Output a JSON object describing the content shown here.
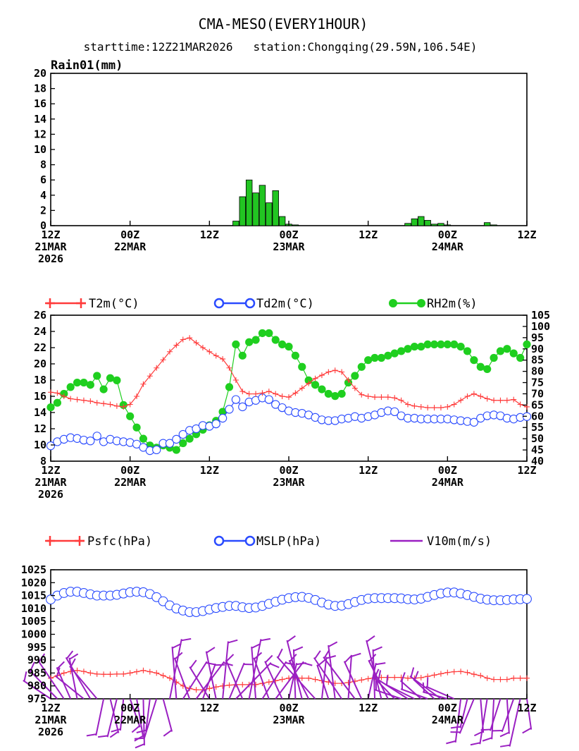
{
  "title": "CMA-MESO(EVERY1HOUR)",
  "subtitle": "starttime:12Z21MAR2026   station:Chongqing(29.59N,106.54E)",
  "colors": {
    "temp": "#ff3b3b",
    "dew": "#2a4bff",
    "rh": "#1fcf1f",
    "bar": "#22c522",
    "wind": "#9a1fc2"
  },
  "x_ticks": [
    {
      "top": "12Z",
      "mid": "21MAR",
      "bot": "2026"
    },
    {
      "top": "00Z",
      "mid": "22MAR",
      "bot": ""
    },
    {
      "top": "12Z",
      "mid": "",
      "bot": ""
    },
    {
      "top": "00Z",
      "mid": "23MAR",
      "bot": ""
    },
    {
      "top": "12Z",
      "mid": "",
      "bot": ""
    },
    {
      "top": "00Z",
      "mid": "24MAR",
      "bot": ""
    },
    {
      "top": "12Z",
      "mid": "",
      "bot": ""
    }
  ],
  "chart_data": [
    {
      "type": "bar",
      "ylabel": "Rain01(mm)",
      "ylim": [
        0,
        20
      ],
      "yticks": [
        "0",
        "2",
        "4",
        "6",
        "8",
        "10",
        "12",
        "14",
        "16",
        "18",
        "20"
      ],
      "xlim_hours": [
        0,
        72
      ],
      "x_hours": [
        28,
        29,
        30,
        31,
        32,
        33,
        34,
        35,
        36,
        37,
        54,
        55,
        56,
        57,
        58,
        59,
        60,
        66,
        67
      ],
      "values": [
        0.6,
        3.8,
        6.0,
        4.3,
        5.3,
        3.0,
        4.6,
        1.2,
        0.2,
        0.1,
        0.3,
        0.9,
        1.2,
        0.7,
        0.2,
        0.3,
        0.1,
        0.4,
        0.1
      ]
    },
    {
      "type": "line",
      "xlim_hours": [
        0,
        72
      ],
      "ylim_left": [
        8,
        26
      ],
      "yticks_left": [
        "8",
        "10",
        "12",
        "14",
        "16",
        "18",
        "20",
        "22",
        "24",
        "26"
      ],
      "ylim_right": [
        40,
        105
      ],
      "yticks_right": [
        "40",
        "45",
        "50",
        "55",
        "60",
        "65",
        "70",
        "75",
        "80",
        "85",
        "90",
        "95",
        "100",
        "105"
      ],
      "series": [
        {
          "name": "T2m(°C)",
          "axis": "left",
          "values": [
            16.5,
            16.4,
            16.0,
            15.7,
            15.6,
            15.5,
            15.4,
            15.2,
            15.1,
            15.0,
            14.8,
            14.7,
            15.0,
            16.0,
            17.5,
            18.5,
            19.5,
            20.5,
            21.5,
            22.3,
            23.0,
            23.2,
            22.6,
            22.0,
            21.5,
            21.0,
            20.6,
            19.5,
            18.0,
            16.6,
            16.3,
            16.3,
            16.4,
            16.6,
            16.3,
            16.0,
            15.9,
            16.4,
            17.0,
            17.6,
            18.2,
            18.6,
            19.0,
            19.2,
            19.0,
            18.0,
            17.0,
            16.2,
            16.0,
            15.9,
            15.9,
            15.9,
            15.8,
            15.5,
            15.0,
            14.8,
            14.7,
            14.6,
            14.6,
            14.6,
            14.7,
            15.0,
            15.5,
            16.0,
            16.3,
            16.0,
            15.7,
            15.5,
            15.5,
            15.5,
            15.6,
            15.0,
            14.7
          ]
        },
        {
          "name": "Td2m(°C)",
          "axis": "left",
          "values": [
            9.9,
            10.4,
            10.7,
            10.9,
            10.8,
            10.6,
            10.5,
            11.1,
            10.4,
            10.7,
            10.5,
            10.4,
            10.3,
            10.1,
            9.7,
            9.3,
            9.4,
            10.2,
            10.2,
            10.7,
            11.3,
            11.8,
            12.0,
            12.4,
            12.3,
            12.6,
            13.3,
            14.4,
            15.6,
            14.7,
            15.3,
            15.5,
            15.8,
            15.6,
            15.0,
            14.6,
            14.2,
            14.0,
            13.9,
            13.7,
            13.4,
            13.1,
            13.0,
            13.0,
            13.2,
            13.3,
            13.5,
            13.3,
            13.5,
            13.7,
            14.0,
            14.2,
            14.1,
            13.6,
            13.3,
            13.3,
            13.2,
            13.2,
            13.2,
            13.2,
            13.2,
            13.1,
            13.0,
            12.9,
            12.8,
            13.3,
            13.6,
            13.7,
            13.6,
            13.3,
            13.2,
            13.4,
            13.5
          ]
        },
        {
          "name": "RH2m(%)",
          "axis": "right",
          "values": [
            64,
            66,
            70,
            73,
            75,
            75,
            74,
            78,
            72,
            77,
            76,
            65,
            60,
            55,
            50,
            47,
            46,
            47,
            46,
            45,
            48,
            50,
            52,
            54,
            56,
            58,
            62,
            73,
            92,
            87,
            93,
            94,
            97,
            97,
            94,
            92,
            91,
            87,
            82,
            76,
            74,
            72,
            70,
            69,
            70,
            75,
            78,
            82,
            85,
            86,
            86,
            87,
            88,
            89,
            90,
            91,
            91,
            92,
            92,
            92,
            92,
            92,
            91,
            89,
            85,
            82,
            81,
            86,
            89,
            90,
            88,
            86,
            92
          ]
        }
      ]
    },
    {
      "type": "line",
      "xlim_hours": [
        0,
        72
      ],
      "ylim": [
        975,
        1025
      ],
      "yticks": [
        "975",
        "980",
        "985",
        "990",
        "995",
        "1000",
        "1005",
        "1010",
        "1015",
        "1020",
        "1025"
      ],
      "series": [
        {
          "name": "Psfc(hPa)",
          "values": [
            983.0,
            984.0,
            985.0,
            985.6,
            986.0,
            985.6,
            985.0,
            984.6,
            984.5,
            984.5,
            984.6,
            984.6,
            985.0,
            985.5,
            986.0,
            985.5,
            985.0,
            984.0,
            983.0,
            981.5,
            980.0,
            979.0,
            978.5,
            978.5,
            979.0,
            979.6,
            980.0,
            980.3,
            980.5,
            980.5,
            980.5,
            980.5,
            981.0,
            981.5,
            982.0,
            982.5,
            983.0,
            983.2,
            983.0,
            983.0,
            982.5,
            982.0,
            981.5,
            981.0,
            981.0,
            981.3,
            981.8,
            982.3,
            982.8,
            983.2,
            983.3,
            983.3,
            983.3,
            983.3,
            983.0,
            983.0,
            983.2,
            983.7,
            984.2,
            984.7,
            985.2,
            985.5,
            985.6,
            985.2,
            984.5,
            984.0,
            983.0,
            982.5,
            982.5,
            982.5,
            983.0,
            983.0,
            983.0
          ]
        },
        {
          "name": "MSLP(hPa)",
          "values": [
            1013.5,
            1015.0,
            1016.0,
            1016.5,
            1016.5,
            1016.0,
            1015.5,
            1015.0,
            1015.0,
            1015.0,
            1015.3,
            1015.8,
            1016.3,
            1016.5,
            1016.3,
            1015.6,
            1014.4,
            1012.8,
            1011.2,
            1010.0,
            1009.2,
            1008.6,
            1008.6,
            1009.0,
            1009.6,
            1010.2,
            1010.6,
            1011.0,
            1011.0,
            1010.5,
            1010.2,
            1010.4,
            1011.0,
            1011.8,
            1012.6,
            1013.4,
            1014.0,
            1014.4,
            1014.5,
            1014.1,
            1013.3,
            1012.3,
            1011.5,
            1011.0,
            1011.1,
            1011.7,
            1012.5,
            1013.3,
            1013.8,
            1014.0,
            1014.0,
            1014.0,
            1014.0,
            1013.9,
            1013.6,
            1013.5,
            1013.8,
            1014.5,
            1015.2,
            1015.8,
            1016.2,
            1016.2,
            1015.8,
            1015.2,
            1014.5,
            1013.8,
            1013.4,
            1013.2,
            1013.2,
            1013.3,
            1013.5,
            1013.6,
            1013.7
          ]
        },
        {
          "name": "V10m(m/s)",
          "type": "wind_barbs",
          "values": []
        }
      ]
    }
  ]
}
